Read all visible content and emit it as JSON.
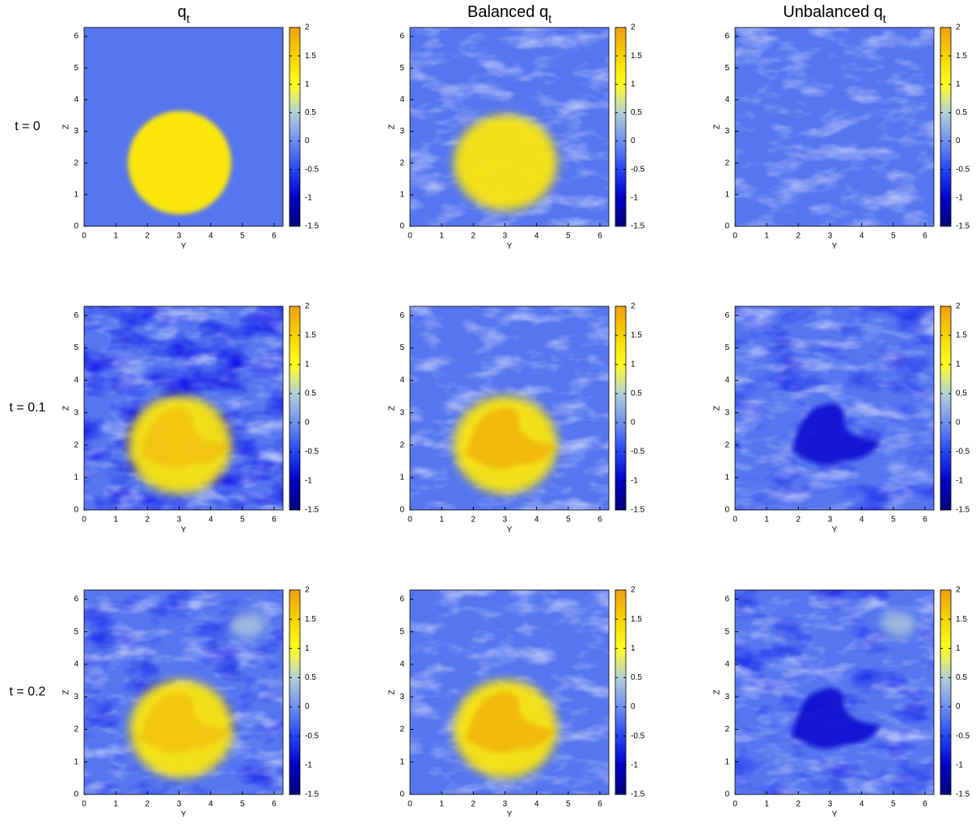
{
  "chart_data": {
    "type": "heatmap",
    "columns": [
      {
        "text": "q",
        "subscript": "t"
      },
      {
        "text": "Balanced q",
        "subscript": "t"
      },
      {
        "text": "Unbalanced q",
        "subscript": "t"
      }
    ],
    "rows": [
      "t = 0",
      "t = 0.1",
      "t = 0.2"
    ],
    "xlabel": "Y",
    "ylabel": "Z",
    "xlim": [
      0,
      6.283
    ],
    "ylim": [
      0,
      6.283
    ],
    "xticks": [
      0,
      1,
      2,
      3,
      4,
      5,
      6
    ],
    "yticks": [
      0,
      1,
      2,
      3,
      4,
      5,
      6
    ],
    "colorbar": {
      "lim": [
        -1.5,
        2
      ],
      "ticks": [
        -1.5,
        -1,
        -0.5,
        0,
        0.5,
        1,
        1.5,
        2
      ],
      "colormap": [
        {
          "value": -1.5,
          "color": "#00007a"
        },
        {
          "value": -1,
          "color": "#0000c8"
        },
        {
          "value": -0.5,
          "color": "#2646f0"
        },
        {
          "value": 0,
          "color": "#6f8ff0"
        },
        {
          "value": 0.5,
          "color": "#b4d0d8"
        },
        {
          "value": 1,
          "color": "#ffff20"
        },
        {
          "value": 1.5,
          "color": "#f7d400"
        },
        {
          "value": 2,
          "color": "#f0a010"
        }
      ]
    }
  }
}
